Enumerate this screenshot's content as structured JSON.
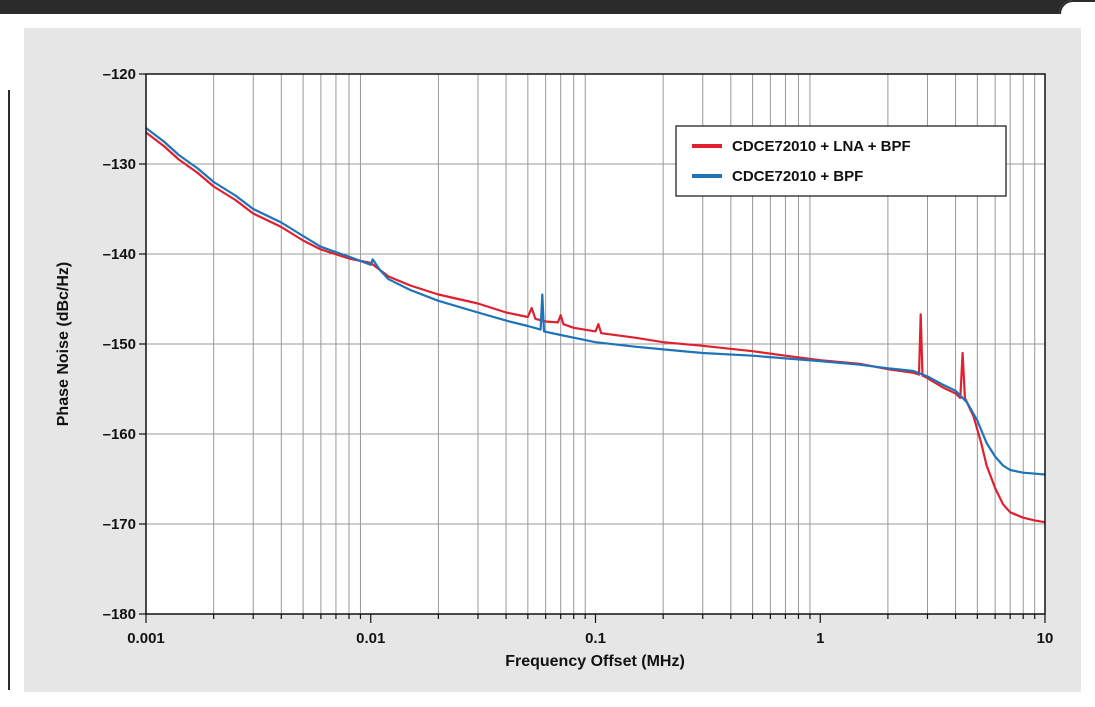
{
  "chart_data": {
    "type": "line",
    "title": "",
    "xlabel": "Frequency Offset (MHz)",
    "ylabel": "Phase Noise (dBc/Hz)",
    "xscale": "log",
    "xlim": [
      0.001,
      10
    ],
    "ylim": [
      -180,
      -120
    ],
    "x_ticks": [
      {
        "value": 0.001,
        "label": "0.001"
      },
      {
        "value": 0.01,
        "label": "0.01"
      },
      {
        "value": 0.1,
        "label": "0.1"
      },
      {
        "value": 1,
        "label": "1"
      },
      {
        "value": 10,
        "label": "10"
      }
    ],
    "y_ticks": [
      {
        "value": -120,
        "label": "–120"
      },
      {
        "value": -130,
        "label": "–130"
      },
      {
        "value": -140,
        "label": "–140"
      },
      {
        "value": -150,
        "label": "–150"
      },
      {
        "value": -160,
        "label": "–160"
      },
      {
        "value": -170,
        "label": "–170"
      },
      {
        "value": -180,
        "label": "–180"
      }
    ],
    "grid": true,
    "legend_position": "top-right",
    "series": [
      {
        "name": "CDCE72010 + LNA + BPF",
        "color": "#e0202e",
        "points": [
          [
            0.001,
            -126.5
          ],
          [
            0.0012,
            -128
          ],
          [
            0.0014,
            -129.5
          ],
          [
            0.0017,
            -131
          ],
          [
            0.002,
            -132.5
          ],
          [
            0.0025,
            -134
          ],
          [
            0.003,
            -135.5
          ],
          [
            0.004,
            -137
          ],
          [
            0.005,
            -138.5
          ],
          [
            0.006,
            -139.5
          ],
          [
            0.008,
            -140.5
          ],
          [
            0.01,
            -141
          ],
          [
            0.012,
            -142.5
          ],
          [
            0.015,
            -143.5
          ],
          [
            0.02,
            -144.5
          ],
          [
            0.03,
            -145.5
          ],
          [
            0.04,
            -146.5
          ],
          [
            0.05,
            -147
          ],
          [
            0.052,
            -146
          ],
          [
            0.054,
            -147.2
          ],
          [
            0.06,
            -147.5
          ],
          [
            0.068,
            -147.6
          ],
          [
            0.07,
            -146.8
          ],
          [
            0.072,
            -147.8
          ],
          [
            0.08,
            -148.2
          ],
          [
            0.1,
            -148.6
          ],
          [
            0.103,
            -147.8
          ],
          [
            0.106,
            -148.8
          ],
          [
            0.15,
            -149.3
          ],
          [
            0.2,
            -149.8
          ],
          [
            0.3,
            -150.2
          ],
          [
            0.5,
            -150.8
          ],
          [
            0.7,
            -151.3
          ],
          [
            1,
            -151.8
          ],
          [
            1.5,
            -152.2
          ],
          [
            2,
            -152.8
          ],
          [
            2.6,
            -153.2
          ],
          [
            2.75,
            -153.4
          ],
          [
            2.8,
            -146.7
          ],
          [
            2.85,
            -153.5
          ],
          [
            3,
            -153.8
          ],
          [
            3.5,
            -154.8
          ],
          [
            4,
            -155.5
          ],
          [
            4.2,
            -156
          ],
          [
            4.3,
            -151
          ],
          [
            4.4,
            -156
          ],
          [
            4.8,
            -158
          ],
          [
            5.2,
            -161
          ],
          [
            5.5,
            -163.5
          ],
          [
            6,
            -166
          ],
          [
            6.5,
            -167.8
          ],
          [
            7,
            -168.7
          ],
          [
            8,
            -169.3
          ],
          [
            9,
            -169.6
          ],
          [
            10,
            -169.8
          ]
        ]
      },
      {
        "name": "CDCE72010 + BPF",
        "color": "#1e73b9",
        "points": [
          [
            0.001,
            -126
          ],
          [
            0.0012,
            -127.5
          ],
          [
            0.0014,
            -129
          ],
          [
            0.0017,
            -130.5
          ],
          [
            0.002,
            -132
          ],
          [
            0.0025,
            -133.5
          ],
          [
            0.003,
            -135
          ],
          [
            0.004,
            -136.5
          ],
          [
            0.005,
            -138
          ],
          [
            0.006,
            -139.2
          ],
          [
            0.008,
            -140.3
          ],
          [
            0.01,
            -141.2
          ],
          [
            0.0102,
            -140.6
          ],
          [
            0.011,
            -141.8
          ],
          [
            0.012,
            -142.8
          ],
          [
            0.015,
            -144
          ],
          [
            0.02,
            -145.2
          ],
          [
            0.03,
            -146.5
          ],
          [
            0.04,
            -147.4
          ],
          [
            0.05,
            -148
          ],
          [
            0.057,
            -148.4
          ],
          [
            0.058,
            -144.5
          ],
          [
            0.059,
            -148.6
          ],
          [
            0.07,
            -149
          ],
          [
            0.08,
            -149.3
          ],
          [
            0.1,
            -149.8
          ],
          [
            0.15,
            -150.3
          ],
          [
            0.2,
            -150.6
          ],
          [
            0.3,
            -151
          ],
          [
            0.5,
            -151.3
          ],
          [
            0.7,
            -151.6
          ],
          [
            1,
            -151.9
          ],
          [
            1.5,
            -152.3
          ],
          [
            2,
            -152.7
          ],
          [
            2.6,
            -153
          ],
          [
            3,
            -153.6
          ],
          [
            3.5,
            -154.5
          ],
          [
            4,
            -155.2
          ],
          [
            4.5,
            -156.5
          ],
          [
            5,
            -158.5
          ],
          [
            5.5,
            -161
          ],
          [
            6,
            -162.5
          ],
          [
            6.5,
            -163.5
          ],
          [
            7,
            -164
          ],
          [
            8,
            -164.3
          ],
          [
            10,
            -164.5
          ]
        ]
      }
    ]
  }
}
